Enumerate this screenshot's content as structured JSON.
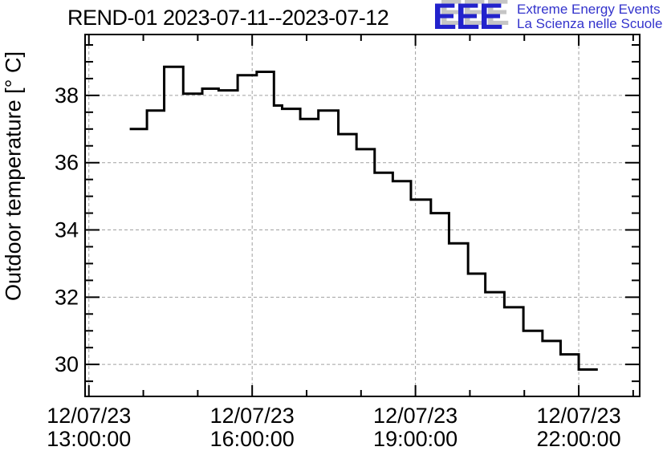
{
  "logo": {
    "acronym": "EEE",
    "line1": "Extreme Energy Events",
    "line2": "La Scienza nelle Scuole",
    "accent_blue": "#2222cc",
    "text_blue": "#3333cc",
    "shadow_gray": "#c5c5c5"
  },
  "colors": {
    "line": "#000000",
    "frame": "#000000",
    "grid": "#a0a0a0",
    "background": "#ffffff"
  },
  "chart_data": {
    "type": "line",
    "style": "step-post",
    "title": "REND-01 2023-07-11--2023-07-12",
    "xlabel": "",
    "ylabel": "Outdoor temperature [° C]",
    "grid": true,
    "legend": "none",
    "xlim_hours": [
      12.93,
      23.12
    ],
    "ylim": [
      29.05,
      39.81
    ],
    "x_major_ticks": [
      {
        "hour": 13,
        "date_label": "12/07/23",
        "time_label": "13:00:00"
      },
      {
        "hour": 16,
        "date_label": "12/07/23",
        "time_label": "16:00:00"
      },
      {
        "hour": 19,
        "date_label": "12/07/23",
        "time_label": "19:00:00"
      },
      {
        "hour": 22,
        "date_label": "12/07/23",
        "time_label": "22:00:00"
      }
    ],
    "x_minor_ticks_hours": [
      14,
      15,
      17,
      18,
      20,
      21,
      23
    ],
    "y_major_ticks": [
      30,
      32,
      34,
      36,
      38
    ],
    "y_minor_ticks": [
      29.5,
      30.5,
      31,
      31.5,
      32.5,
      33,
      33.5,
      34.5,
      35,
      35.5,
      36.5,
      37,
      37.5,
      38.5,
      39,
      39.5
    ],
    "points": [
      {
        "time": "13:45",
        "temp": 37.0
      },
      {
        "time": "14:04",
        "temp": 37.55
      },
      {
        "time": "14:23",
        "temp": 38.85
      },
      {
        "time": "14:44",
        "temp": 38.05
      },
      {
        "time": "15:05",
        "temp": 38.2
      },
      {
        "time": "15:23",
        "temp": 38.15
      },
      {
        "time": "15:44",
        "temp": 38.6
      },
      {
        "time": "16:05",
        "temp": 38.7
      },
      {
        "time": "16:24",
        "temp": 37.7
      },
      {
        "time": "16:33",
        "temp": 37.6
      },
      {
        "time": "16:53",
        "temp": 37.3
      },
      {
        "time": "17:13",
        "temp": 37.55
      },
      {
        "time": "17:35",
        "temp": 36.85
      },
      {
        "time": "17:55",
        "temp": 36.4
      },
      {
        "time": "18:15",
        "temp": 35.7
      },
      {
        "time": "18:35",
        "temp": 35.45
      },
      {
        "time": "18:55",
        "temp": 34.9
      },
      {
        "time": "19:17",
        "temp": 34.5
      },
      {
        "time": "19:37",
        "temp": 33.6
      },
      {
        "time": "19:58",
        "temp": 32.7
      },
      {
        "time": "20:17",
        "temp": 32.15
      },
      {
        "time": "20:38",
        "temp": 31.7
      },
      {
        "time": "20:59",
        "temp": 31.0
      },
      {
        "time": "21:20",
        "temp": 30.7
      },
      {
        "time": "21:40",
        "temp": 30.3
      },
      {
        "time": "22:00",
        "temp": 29.85
      }
    ],
    "end_time": "22:21"
  }
}
